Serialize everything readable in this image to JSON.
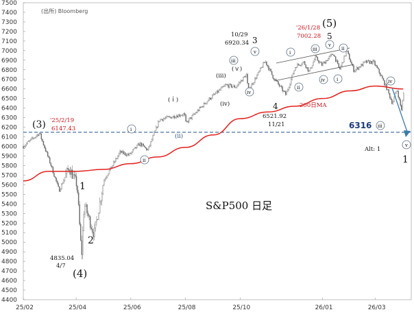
{
  "source_note": "(出所) Bloomberg",
  "title": "S&P500 日足",
  "colors": {
    "price": "#6a6a6a",
    "ma": "#e0201c",
    "dashed": "#1c4f86",
    "red_text": "#c4161c",
    "label_6316": "#1c3b7a",
    "arrow": "#3a7ca5"
  },
  "chart_data": {
    "type": "candlestick",
    "title": "S&P500 日足",
    "ylim": [
      4400,
      7500
    ],
    "yticks": [
      "7500",
      "7400",
      "7300",
      "7200",
      "7100",
      "7000",
      "6900",
      "6800",
      "6700",
      "6600",
      "6500",
      "6400",
      "6300",
      "6200",
      "6100",
      "6000",
      "5900",
      "5800",
      "5700",
      "5600",
      "5500",
      "5400",
      "5300",
      "5200",
      "5100",
      "5000",
      "4900",
      "4800",
      "4700",
      "4600",
      "4500",
      "4400"
    ],
    "xticks": [
      "25/02",
      "25/04",
      "25/06",
      "25/08",
      "25/10",
      "26/01",
      "26/03"
    ],
    "price_path": [
      [
        "2025-02-01",
        6000
      ],
      [
        "2025-02-19",
        6140
      ],
      [
        "2025-03-04",
        5800
      ],
      [
        "2025-03-13",
        5540
      ],
      [
        "2025-03-24",
        5780
      ],
      [
        "2025-04-02",
        5600
      ],
      [
        "2025-04-07",
        4850
      ],
      [
        "2025-04-10",
        5400
      ],
      [
        "2025-04-21",
        5080
      ],
      [
        "2025-05-02",
        5650
      ],
      [
        "2025-05-20",
        5940
      ],
      [
        "2025-05-30",
        5910
      ],
      [
        "2025-06-11",
        6030
      ],
      [
        "2025-06-20",
        5960
      ],
      [
        "2025-07-03",
        6280
      ],
      [
        "2025-07-31",
        6340
      ],
      [
        "2025-08-01",
        6240
      ],
      [
        "2025-08-28",
        6500
      ],
      [
        "2025-09-15",
        6640
      ],
      [
        "2025-09-26",
        6620
      ],
      [
        "2025-10-08",
        6750
      ],
      [
        "2025-10-10",
        6580
      ],
      [
        "2025-10-29",
        6890
      ],
      [
        "2025-11-07",
        6720
      ],
      [
        "2025-11-21",
        6540
      ],
      [
        "2025-12-02",
        6840
      ],
      [
        "2025-12-11",
        6880
      ],
      [
        "2025-12-17",
        6780
      ],
      [
        "2025-12-24",
        6930
      ],
      [
        "2025-12-31",
        6850
      ],
      [
        "2026-01-13",
        6970
      ],
      [
        "2026-01-20",
        6800
      ],
      [
        "2026-01-28",
        7000
      ],
      [
        "2026-02-05",
        6790
      ],
      [
        "2026-02-18",
        6880
      ],
      [
        "2026-02-27",
        6880
      ],
      [
        "2026-03-06",
        6760
      ],
      [
        "2026-03-13",
        6620
      ],
      [
        "2026-03-20",
        6450
      ],
      [
        "2026-03-25",
        6600
      ],
      [
        "2026-03-30",
        6380
      ],
      [
        "2026-04-02",
        6580
      ]
    ],
    "ma_path": [
      [
        "2025-02-01",
        5640
      ],
      [
        "2025-03-01",
        5740
      ],
      [
        "2025-04-01",
        5740
      ],
      [
        "2025-05-01",
        5760
      ],
      [
        "2025-06-01",
        5820
      ],
      [
        "2025-07-01",
        5890
      ],
      [
        "2025-08-01",
        5990
      ],
      [
        "2025-09-01",
        6120
      ],
      [
        "2025-10-01",
        6290
      ],
      [
        "2025-11-01",
        6360
      ],
      [
        "2025-12-01",
        6420
      ],
      [
        "2026-01-01",
        6500
      ],
      [
        "2026-02-01",
        6580
      ],
      [
        "2026-03-01",
        6630
      ],
      [
        "2026-04-01",
        6600
      ]
    ],
    "dashed_level": 6147.43,
    "annotations": {
      "wave3_big": "(3)",
      "w3_date": "'25/2/19",
      "w3_price": "6147.43",
      "wave1": "1",
      "wave2": "2",
      "w4_price": "4835.04",
      "w4_date": "4/7",
      "wave4_big": "(4)",
      "top3_date": "10/29",
      "top3_price": "6920.34",
      "wave3": "3",
      "wave4": "4",
      "w4_low_price": "6521.92",
      "w4_low_date": "11/21",
      "w5_date": "'26/1/28",
      "w5_price": "7002.28",
      "wave5_big": "(5)",
      "wave5": "5",
      "ma_label": "200日MA",
      "level_6316": "6316",
      "alt": "Alt: 1",
      "future_1": "1",
      "rom_i": "i",
      "rom_ii": "ii",
      "rom_iii": "iii",
      "rom_iv": "iv",
      "rom_v": "v",
      "par_i": "(ｉ)",
      "par_ii": "(ii)",
      "par_iii": "(iii)",
      "par_iv": "(iv)",
      "par_v": "(ｖ)"
    }
  }
}
